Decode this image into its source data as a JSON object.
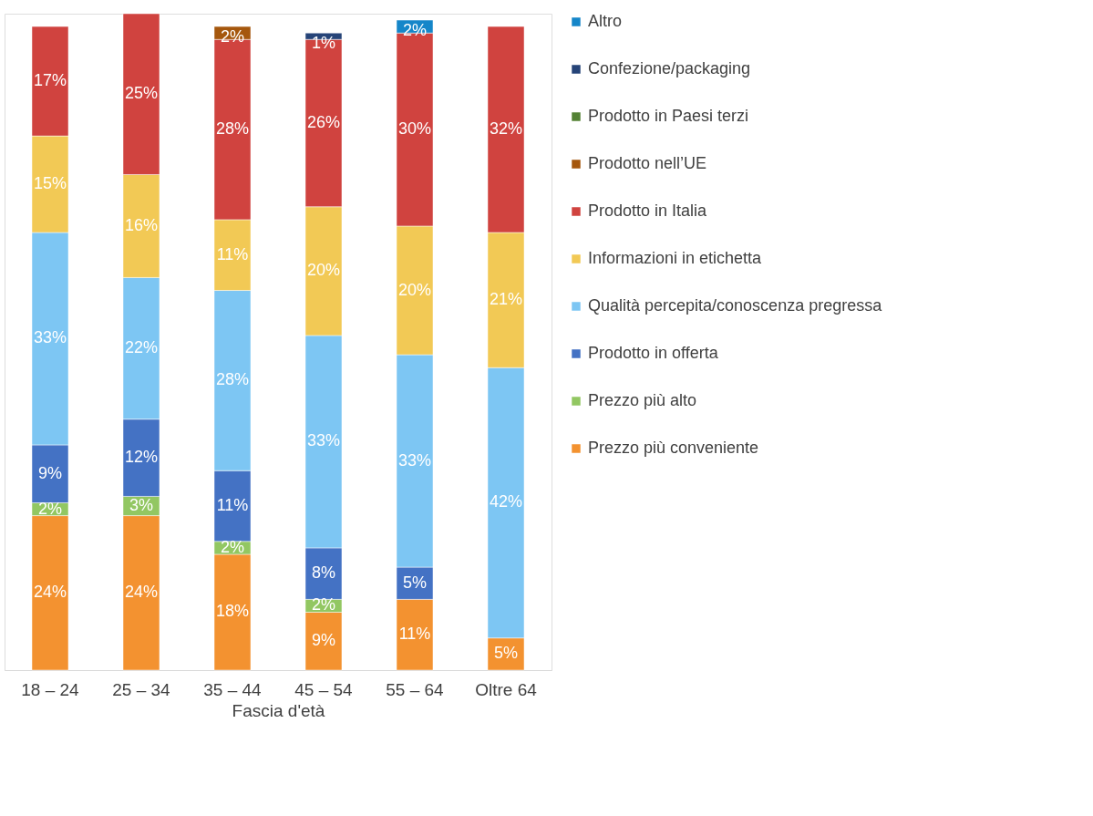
{
  "chart_data": {
    "type": "bar",
    "stacked": true,
    "xlabel": "Fascia d'età",
    "legend": "right",
    "categories": [
      "18 – 24",
      "25 – 34",
      "35 – 44",
      "45 – 54",
      "55 – 64",
      "Oltre 64"
    ],
    "series": [
      {
        "name": "Prezzo più conveniente",
        "color": "#f39230",
        "values": [
          24,
          24,
          18,
          9,
          11,
          5
        ],
        "value_labels": [
          "24%",
          "24%",
          "18%",
          "9%",
          "11%",
          "5%"
        ]
      },
      {
        "name": "Prezzo più alto",
        "color": "#92c762",
        "values": [
          2,
          3,
          2,
          2,
          null,
          null
        ],
        "value_labels": [
          "2%",
          "3%",
          "2%",
          "2%",
          null,
          null
        ]
      },
      {
        "name": "Prodotto in offerta",
        "color": "#4472c4",
        "values": [
          9,
          12,
          11,
          8,
          5,
          null
        ],
        "value_labels": [
          "9%",
          "12%",
          "11%",
          "8%",
          "5%",
          null
        ]
      },
      {
        "name": "Qualità percepita/conoscenza pregressa",
        "color": "#7dc6f3",
        "values": [
          33,
          22,
          28,
          33,
          33,
          42
        ],
        "value_labels": [
          "33%",
          "22%",
          "28%",
          "33%",
          "33%",
          "42%"
        ]
      },
      {
        "name": "Informazioni in etichetta",
        "color": "#f2c955",
        "values": [
          15,
          16,
          11,
          20,
          20,
          21
        ],
        "value_labels": [
          "15%",
          "16%",
          "11%",
          "20%",
          "20%",
          "21%"
        ]
      },
      {
        "name": "Prodotto in Italia",
        "color": "#d0433f",
        "values": [
          17,
          25,
          28,
          26,
          30,
          32
        ],
        "value_labels": [
          "17%",
          "25%",
          "28%",
          "26%",
          "30%",
          "32%"
        ]
      },
      {
        "name": "Prodotto nell’UE",
        "color": "#a5570d",
        "values": [
          null,
          null,
          2,
          null,
          null,
          null
        ],
        "value_labels": [
          null,
          null,
          "2%",
          null,
          null,
          null
        ]
      },
      {
        "name": "Prodotto in Paesi terzi",
        "color": "#548235",
        "values": [
          null,
          null,
          null,
          null,
          null,
          null
        ],
        "value_labels": [
          null,
          null,
          null,
          null,
          null,
          null
        ]
      },
      {
        "name": "Confezione/packaging",
        "color": "#264478",
        "values": [
          null,
          null,
          null,
          1,
          null,
          null
        ],
        "value_labels": [
          null,
          null,
          null,
          "1%",
          null,
          null
        ]
      },
      {
        "name": "Altro",
        "color": "#1586c9",
        "values": [
          null,
          null,
          null,
          null,
          2,
          null
        ],
        "value_labels": [
          null,
          null,
          null,
          null,
          "2%",
          null
        ]
      }
    ]
  }
}
